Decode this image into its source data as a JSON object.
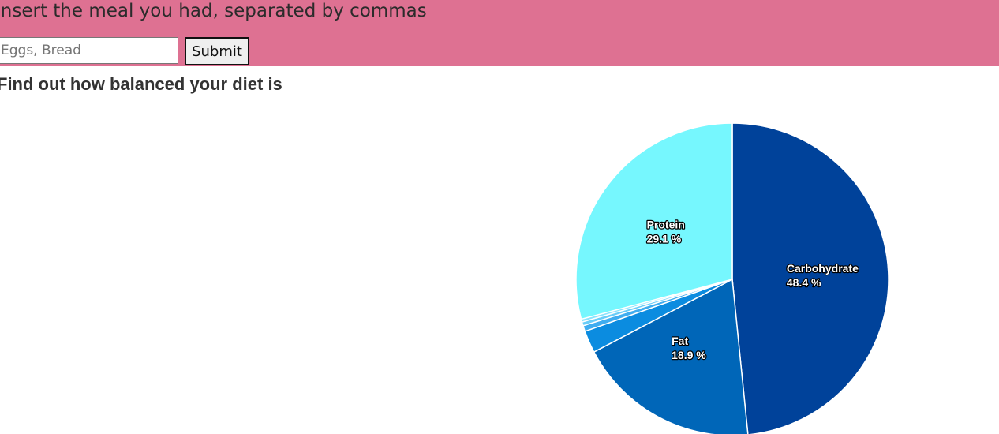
{
  "header": {
    "prompt": "Insert the meal you had, separated by commas",
    "input_placeholder": "Eggs, Bread",
    "input_value": "",
    "submit_label": "Submit",
    "background_color": "#de7192"
  },
  "main": {
    "subtitle": "Find out how balanced your diet is"
  },
  "chart_data": {
    "type": "pie",
    "title": "",
    "start_angle_deg": 0,
    "direction": "clockwise",
    "slices": [
      {
        "name": "Carbohydrate",
        "value": 48.4,
        "label": "48.4 %",
        "show_label": true,
        "color": "#00429a"
      },
      {
        "name": "Fat",
        "value": 18.9,
        "label": "18.9 %",
        "show_label": true,
        "color": "#0066b8"
      },
      {
        "name": "",
        "value": 2.3,
        "label": "",
        "show_label": false,
        "color": "#0b8ce0"
      },
      {
        "name": "",
        "value": 0.6,
        "label": "",
        "show_label": false,
        "color": "#3fadf0"
      },
      {
        "name": "",
        "value": 0.4,
        "label": "",
        "show_label": false,
        "color": "#69cdf8"
      },
      {
        "name": "",
        "value": 0.3,
        "label": "",
        "show_label": false,
        "color": "#8ae4fd"
      },
      {
        "name": "Protein",
        "value": 29.1,
        "label": "29.1 %",
        "show_label": true,
        "color": "#76f7fe"
      }
    ]
  }
}
